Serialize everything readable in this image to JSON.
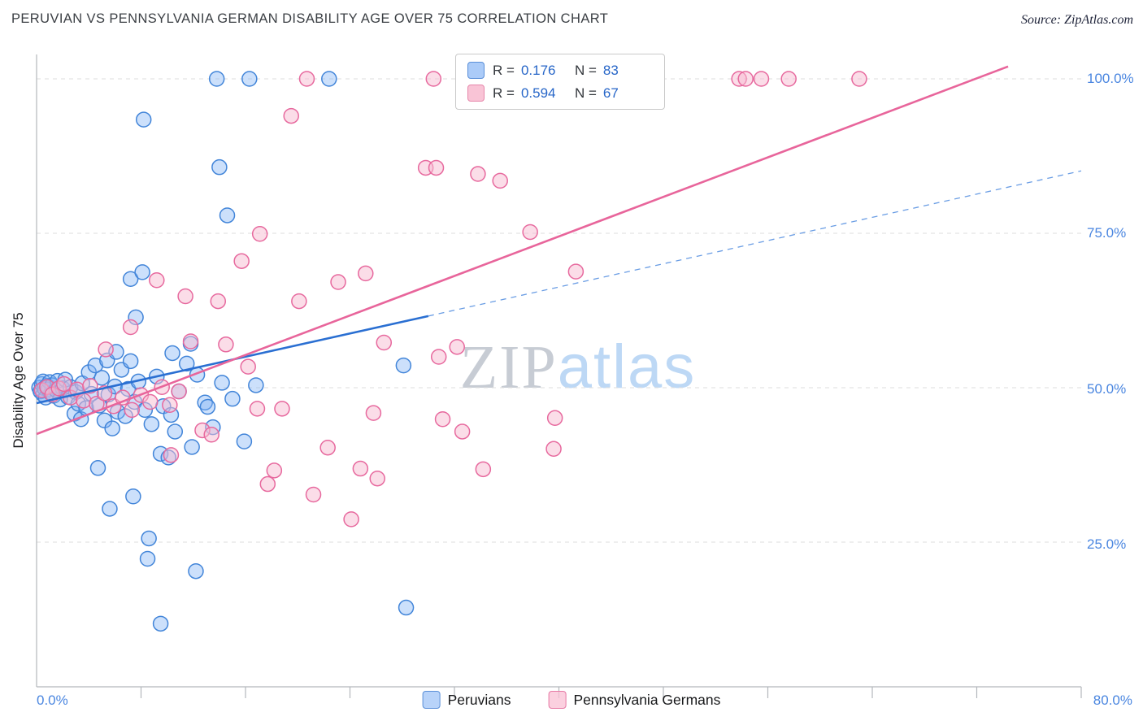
{
  "title": "PERUVIAN VS PENNSYLVANIA GERMAN DISABILITY AGE OVER 75 CORRELATION CHART",
  "source": "Source: ZipAtlas.com",
  "watermark": {
    "zip": "ZIP",
    "atlas": "atlas"
  },
  "y_axis": {
    "label": "Disability Age Over 75",
    "ticks": [
      "100.0%",
      "75.0%",
      "50.0%",
      "25.0%"
    ]
  },
  "x_axis": {
    "min_label": "0.0%",
    "max_label": "80.0%"
  },
  "legend_box": {
    "rows": [
      {
        "r_label": "R =",
        "r_value": "0.176",
        "n_label": "N =",
        "n_value": "83"
      },
      {
        "r_label": "R =",
        "r_value": "0.594",
        "n_label": "N =",
        "n_value": "67"
      }
    ]
  },
  "bottom_legend": [
    {
      "label": "Peruvians"
    },
    {
      "label": "Pennsylvania Germans"
    }
  ],
  "colors": {
    "grid": "#dcdcdc",
    "axis": "#b3b7bc",
    "tick_label": "#4a86e0",
    "value_text": "#2766c8",
    "trend_blue": "#2a6fd2",
    "trend_blue_dash": "#6a9de4",
    "trend_pink": "#e8659b"
  },
  "chart_data": {
    "type": "scatter",
    "title": "PERUVIAN VS PENNSYLVANIA GERMAN DISABILITY AGE OVER 75 CORRELATION CHART",
    "xlabel": "",
    "ylabel": "Disability Age Over 75",
    "xlim": [
      0,
      80
    ],
    "ylim": [
      0,
      104
    ],
    "x_tick_labels_shown": [
      "0.0%",
      "80.0%"
    ],
    "y_tick_labels_shown": [
      "25.0%",
      "50.0%",
      "75.0%",
      "100.0%"
    ],
    "y_gridlines_percent": [
      25,
      50,
      75,
      100
    ],
    "x_ticks_percent": [
      8,
      16,
      24,
      32,
      40,
      48,
      56,
      64,
      72,
      80
    ],
    "grid": "horizontal-dashed",
    "legend_position": "top-center",
    "series": [
      {
        "name": "Peruvians",
        "slug": "peruvians",
        "r": 0.176,
        "n": 83,
        "fill": "#7fb1f5",
        "fill_opacity": 0.4,
        "stroke": "#4285d9",
        "points": [
          [
            0.2,
            50.0
          ],
          [
            0.3,
            49.4
          ],
          [
            0.4,
            50.6
          ],
          [
            0.5,
            48.9
          ],
          [
            0.5,
            51.0
          ],
          [
            0.6,
            49.9
          ],
          [
            0.7,
            48.4
          ],
          [
            0.8,
            50.3
          ],
          [
            0.9,
            49.7
          ],
          [
            1.0,
            50.9
          ],
          [
            1.1,
            49.1
          ],
          [
            1.2,
            50.4
          ],
          [
            1.3,
            48.7
          ],
          [
            1.5,
            49.6
          ],
          [
            1.6,
            51.1
          ],
          [
            1.8,
            48.1
          ],
          [
            2.0,
            49.9
          ],
          [
            2.2,
            51.3
          ],
          [
            2.4,
            48.5
          ],
          [
            2.6,
            50.1
          ],
          [
            2.9,
            45.8
          ],
          [
            3.0,
            49.3
          ],
          [
            3.2,
            47.4
          ],
          [
            3.4,
            44.9
          ],
          [
            3.5,
            50.7
          ],
          [
            3.8,
            46.7
          ],
          [
            4.0,
            52.5
          ],
          [
            4.2,
            49.0
          ],
          [
            4.5,
            53.6
          ],
          [
            4.7,
            37.0
          ],
          [
            4.8,
            47.1
          ],
          [
            5.0,
            51.6
          ],
          [
            5.2,
            44.7
          ],
          [
            5.4,
            54.4
          ],
          [
            5.5,
            48.9
          ],
          [
            5.6,
            30.4
          ],
          [
            5.8,
            43.4
          ],
          [
            6.0,
            50.2
          ],
          [
            6.1,
            55.8
          ],
          [
            6.2,
            46.1
          ],
          [
            6.5,
            52.9
          ],
          [
            6.8,
            45.4
          ],
          [
            7.0,
            49.8
          ],
          [
            7.2,
            54.3
          ],
          [
            7.2,
            67.6
          ],
          [
            7.4,
            32.4
          ],
          [
            7.5,
            47.7
          ],
          [
            7.6,
            61.4
          ],
          [
            7.8,
            51.0
          ],
          [
            8.1,
            68.7
          ],
          [
            8.2,
            93.4
          ],
          [
            8.3,
            46.4
          ],
          [
            8.5,
            22.3
          ],
          [
            8.6,
            25.6
          ],
          [
            8.8,
            44.1
          ],
          [
            9.2,
            51.8
          ],
          [
            9.5,
            11.8
          ],
          [
            9.5,
            39.3
          ],
          [
            9.7,
            47.0
          ],
          [
            10.1,
            38.7
          ],
          [
            10.3,
            45.6
          ],
          [
            10.4,
            55.6
          ],
          [
            10.6,
            42.9
          ],
          [
            10.9,
            49.4
          ],
          [
            11.5,
            53.9
          ],
          [
            11.8,
            57.1
          ],
          [
            11.9,
            40.4
          ],
          [
            12.2,
            20.3
          ],
          [
            12.3,
            52.1
          ],
          [
            12.9,
            47.6
          ],
          [
            13.1,
            46.9
          ],
          [
            13.5,
            43.6
          ],
          [
            13.8,
            100.0
          ],
          [
            14.0,
            85.7
          ],
          [
            14.2,
            50.8
          ],
          [
            14.6,
            77.9
          ],
          [
            15.0,
            48.2
          ],
          [
            15.9,
            41.3
          ],
          [
            16.3,
            100.0
          ],
          [
            16.8,
            50.4
          ],
          [
            22.4,
            100.0
          ],
          [
            28.1,
            53.6
          ],
          [
            28.3,
            14.4
          ]
        ]
      },
      {
        "name": "Pennsylvania Germans",
        "slug": "pennsylvania-germans",
        "r": 0.594,
        "n": 67,
        "fill": "#f8bcd2",
        "fill_opacity": 0.5,
        "stroke": "#e7699e",
        "points": [
          [
            0.4,
            49.6
          ],
          [
            0.8,
            50.1
          ],
          [
            1.2,
            48.9
          ],
          [
            1.7,
            49.9
          ],
          [
            2.1,
            50.6
          ],
          [
            2.6,
            48.4
          ],
          [
            3.1,
            49.7
          ],
          [
            3.6,
            47.9
          ],
          [
            4.1,
            50.3
          ],
          [
            4.6,
            47.4
          ],
          [
            5.2,
            49.1
          ],
          [
            5.3,
            56.2
          ],
          [
            5.9,
            47.0
          ],
          [
            6.6,
            48.4
          ],
          [
            7.2,
            59.8
          ],
          [
            7.3,
            46.4
          ],
          [
            8.0,
            48.8
          ],
          [
            8.7,
            47.7
          ],
          [
            9.2,
            67.4
          ],
          [
            9.6,
            50.1
          ],
          [
            10.2,
            47.2
          ],
          [
            10.3,
            39.1
          ],
          [
            10.9,
            49.4
          ],
          [
            11.4,
            64.8
          ],
          [
            11.8,
            57.5
          ],
          [
            12.7,
            43.1
          ],
          [
            13.4,
            42.4
          ],
          [
            13.9,
            64.0
          ],
          [
            14.5,
            57.0
          ],
          [
            15.7,
            70.5
          ],
          [
            16.2,
            53.4
          ],
          [
            16.9,
            46.6
          ],
          [
            17.1,
            74.9
          ],
          [
            17.7,
            34.4
          ],
          [
            18.2,
            36.6
          ],
          [
            18.8,
            46.6
          ],
          [
            19.5,
            94.0
          ],
          [
            20.1,
            64.0
          ],
          [
            20.7,
            100.0
          ],
          [
            21.2,
            32.7
          ],
          [
            22.3,
            40.3
          ],
          [
            23.1,
            67.1
          ],
          [
            24.1,
            28.7
          ],
          [
            24.8,
            36.9
          ],
          [
            25.2,
            68.5
          ],
          [
            25.8,
            45.9
          ],
          [
            26.1,
            35.3
          ],
          [
            26.6,
            57.3
          ],
          [
            29.8,
            85.6
          ],
          [
            30.4,
            100.0
          ],
          [
            30.6,
            85.6
          ],
          [
            30.8,
            55.0
          ],
          [
            31.1,
            44.9
          ],
          [
            32.2,
            56.6
          ],
          [
            32.6,
            42.9
          ],
          [
            33.8,
            84.6
          ],
          [
            34.2,
            36.8
          ],
          [
            35.5,
            83.5
          ],
          [
            37.8,
            75.2
          ],
          [
            39.6,
            40.1
          ],
          [
            39.7,
            45.1
          ],
          [
            41.3,
            68.8
          ],
          [
            53.8,
            100.0
          ],
          [
            54.3,
            100.0
          ],
          [
            55.5,
            100.0
          ],
          [
            57.6,
            100.0
          ],
          [
            63.0,
            100.0
          ]
        ]
      }
    ],
    "trend_lines": [
      {
        "name": "Peruvians",
        "x1": 0,
        "y1": 47.5,
        "x2": 30,
        "y2": 61.6,
        "dash_x2": 80,
        "dash_y2": 85.1
      },
      {
        "name": "Pennsylvania Germans",
        "x1": 0,
        "y1": 42.5,
        "x2": 74.4,
        "y2": 102.0
      }
    ]
  }
}
